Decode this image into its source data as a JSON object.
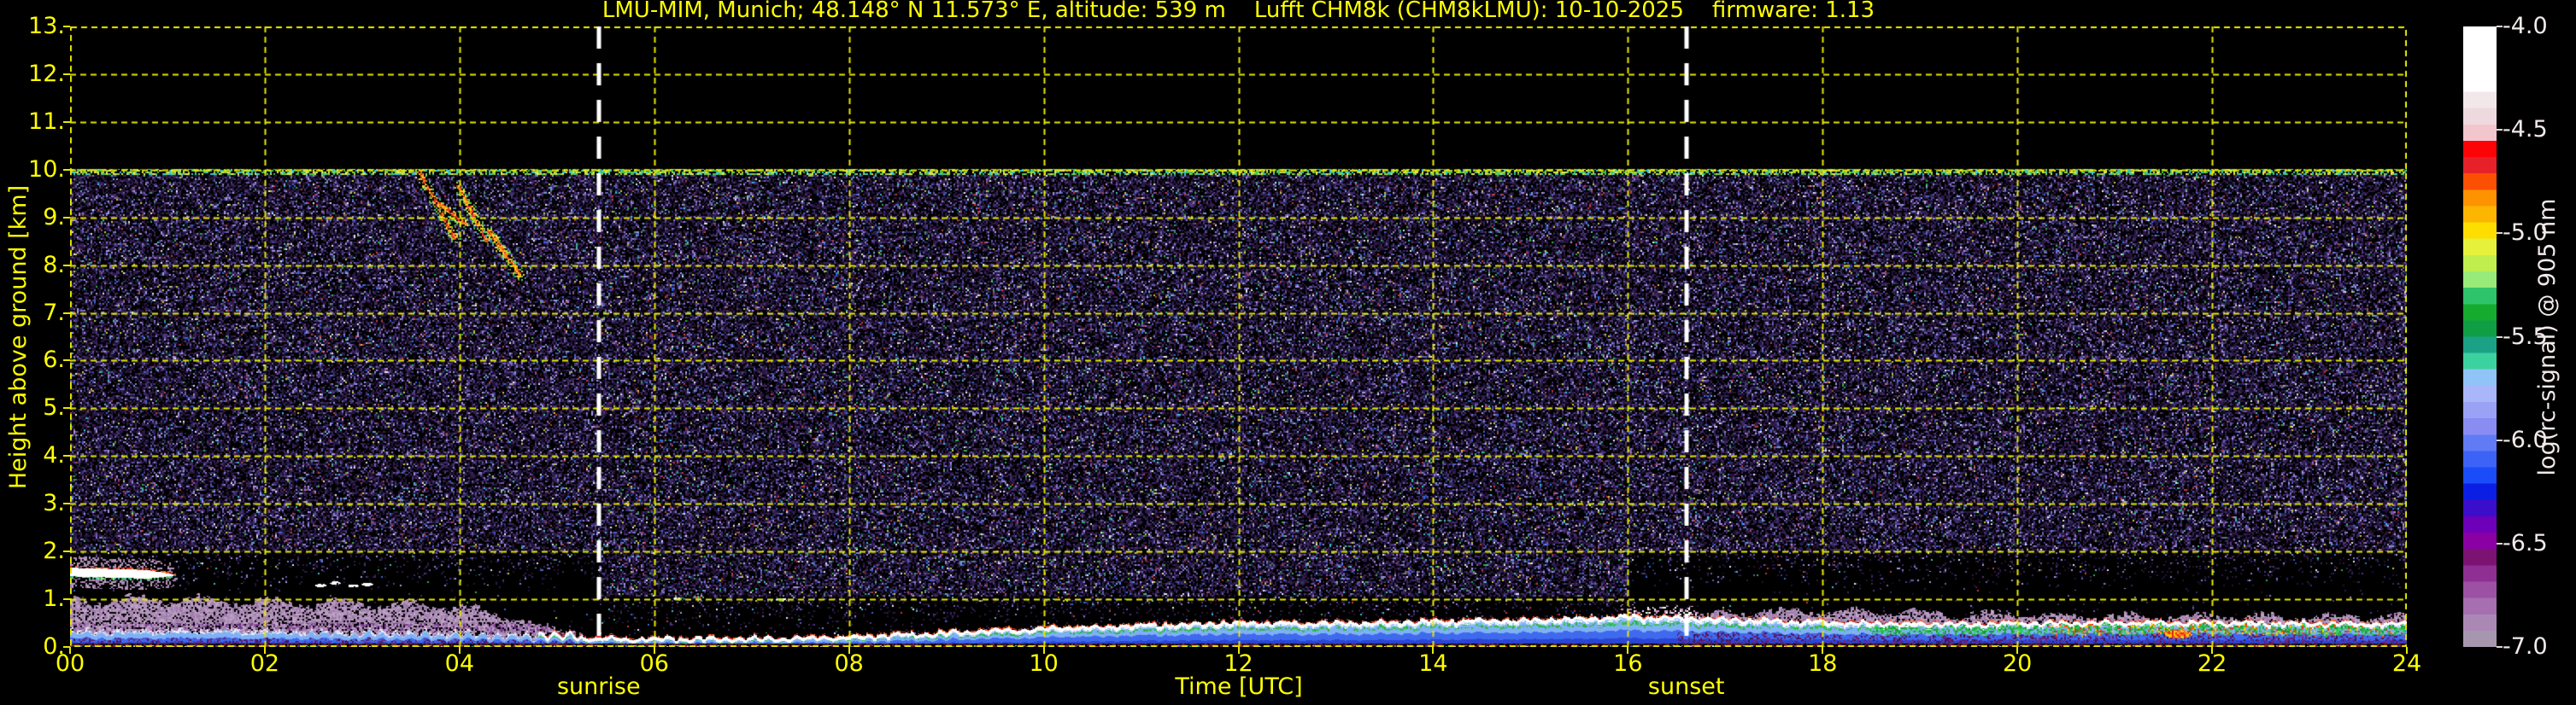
{
  "header": {
    "title": "LMU-MIM, Munich; 48.148° N 11.573° E, altitude: 539 m    Lufft CHM8k (CHM8kLMU): 10-10-2025    firmware: 1.13"
  },
  "chart_data": {
    "type": "heatmap",
    "title": "LMU-MIM, Munich; 48.148° N 11.573° E, altitude: 539 m    Lufft CHM8k (CHM8kLMU): 10-10-2025    firmware: 1.13",
    "xlabel": "Time [UTC]",
    "ylabel": "Height above ground [km]",
    "colorbar_label": "log(rc-signal) @ 905 nm",
    "x_range_hours": [
      0,
      24
    ],
    "x_tick_step_hours": 2,
    "x_tick_labels": [
      "00",
      "02",
      "04",
      "06",
      "08",
      "10",
      "12",
      "14",
      "16",
      "18",
      "20",
      "22",
      "24"
    ],
    "y_range_km": [
      0,
      13
    ],
    "y_tick_step_km": 1,
    "y_tick_labels": [
      "0.",
      "1.",
      "2.",
      "3.",
      "4.",
      "5.",
      "6.",
      "7.",
      "8.",
      "9.",
      "10.",
      "11.",
      "12.",
      "13."
    ],
    "colorbar_range": [
      -4.0,
      -7.0
    ],
    "colorbar_tick_labels": [
      "-4.0",
      "-4.5",
      "-5.0",
      "-5.5",
      "-6.0",
      "-6.5",
      "-7.0"
    ],
    "colorbar_colors": [
      "#ffffff",
      "#ffffff",
      "#ffffff",
      "#ffffff",
      "#f2e8ea",
      "#eedade",
      "#f2c6cc",
      "#fb0307",
      "#e62129",
      "#fb4f04",
      "#fe9302",
      "#fcb501",
      "#fede00",
      "#e6f13b",
      "#bfee4e",
      "#98ea79",
      "#2ec46a",
      "#14ab2f",
      "#0f9e44",
      "#1ba286",
      "#3bd2a0",
      "#90c3f6",
      "#a9b7fa",
      "#99a2f5",
      "#8a8cf2",
      "#607bf3",
      "#3c62f6",
      "#1a4cfa",
      "#0b1fe4",
      "#3a0ecb",
      "#6d00b8",
      "#8a00a4",
      "#7c1272",
      "#8f2f93",
      "#9c51a4",
      "#a66fb0",
      "#ab88b4",
      "#a797ae"
    ],
    "sunrise_label": "sunrise",
    "sunrise_time_utc": 5.43,
    "sunset_label": "sunset",
    "sunset_time_utc": 16.6,
    "max_signal_height_km": 10.0,
    "noise_floor_km": {
      "day": 1.05,
      "night": 2.0
    },
    "boundary_layer_top_km": [
      0.23,
      0.26,
      0.24,
      0.22,
      0.2,
      0.14,
      0.11,
      0.12,
      0.15,
      0.24,
      0.33,
      0.4,
      0.45,
      0.44,
      0.48,
      0.5,
      0.58,
      0.52,
      0.46,
      0.43,
      0.44,
      0.46,
      0.45,
      0.44,
      0.43
    ],
    "night_aerosol_top_km": [
      0.95,
      1.0,
      0.93,
      0.9,
      0.85,
      0.35,
      0,
      0,
      0,
      0,
      0,
      0,
      0,
      0,
      0,
      0,
      0,
      0.72,
      0.75,
      0.7,
      0.66,
      0.62,
      0.6,
      0.57,
      0.55
    ],
    "residual_layer": {
      "time_start": 0.0,
      "time_end": 1.08,
      "height_km": 1.56,
      "half_thickness_km": 0.09
    },
    "cloud_specks": [
      [
        2.57,
        1.28
      ],
      [
        2.72,
        1.33
      ],
      [
        2.9,
        1.27
      ],
      [
        3.05,
        1.3
      ],
      [
        6.25,
        1.0
      ],
      [
        6.45,
        1.03
      ],
      [
        7.3,
        0.98
      ]
    ],
    "cirrus_streaks": [
      [
        3.58,
        9.95,
        3.95,
        8.55
      ],
      [
        3.98,
        9.65,
        4.28,
        8.5
      ],
      [
        4.3,
        8.7,
        4.62,
        7.78
      ],
      [
        3.75,
        9.35,
        4.05,
        8.85
      ]
    ],
    "grid": {
      "color": "#e8e800",
      "dash_on": 7,
      "dash_off": 5
    },
    "colors": {
      "background": "#000000",
      "text_accent": "#ffff00",
      "colorbar_text": "#f2e9e9",
      "sun_line": "#ffffff",
      "noise_palette": [
        "#221335",
        "#2d1c4b",
        "#3b2963",
        "#4c3a84",
        "#6a5cb0",
        "#8a7ed2",
        "#a89ae6"
      ],
      "noise_brights": [
        "#2fae4e",
        "#c43b3b",
        "#3fbfc9",
        "#c9c93f",
        "#e8e8f0",
        "#2f6ae0"
      ],
      "top_edge_palette": [
        "#49c24f",
        "#9fd43f",
        "#3fc9c9",
        "#e8e850"
      ],
      "mauve_palette": [
        "#b295bb",
        "#a886b2",
        "#bfa3c6",
        "#9b79a8"
      ],
      "dark_purple_palette": [
        "#7c4292",
        "#6b2f80"
      ],
      "blue_band": [
        "#7fb0f4",
        "#3f6aee",
        "#2a46d6"
      ],
      "cap_white": "#ffffff",
      "cap_red": [
        "#e03020",
        "#ff7030"
      ],
      "cap_green": [
        "#2faf4f",
        "#35c457"
      ],
      "maroon_bottom": [
        "#4f1224",
        "#6b1b2e",
        "#7a2038",
        "#2a0a12"
      ],
      "evening_green": [
        "#1fae3f",
        "#2fcf5f",
        "#18982f"
      ],
      "evening_hot": [
        "#ffcc00",
        "#ff5000",
        "#d83030",
        "#30c050"
      ]
    }
  }
}
